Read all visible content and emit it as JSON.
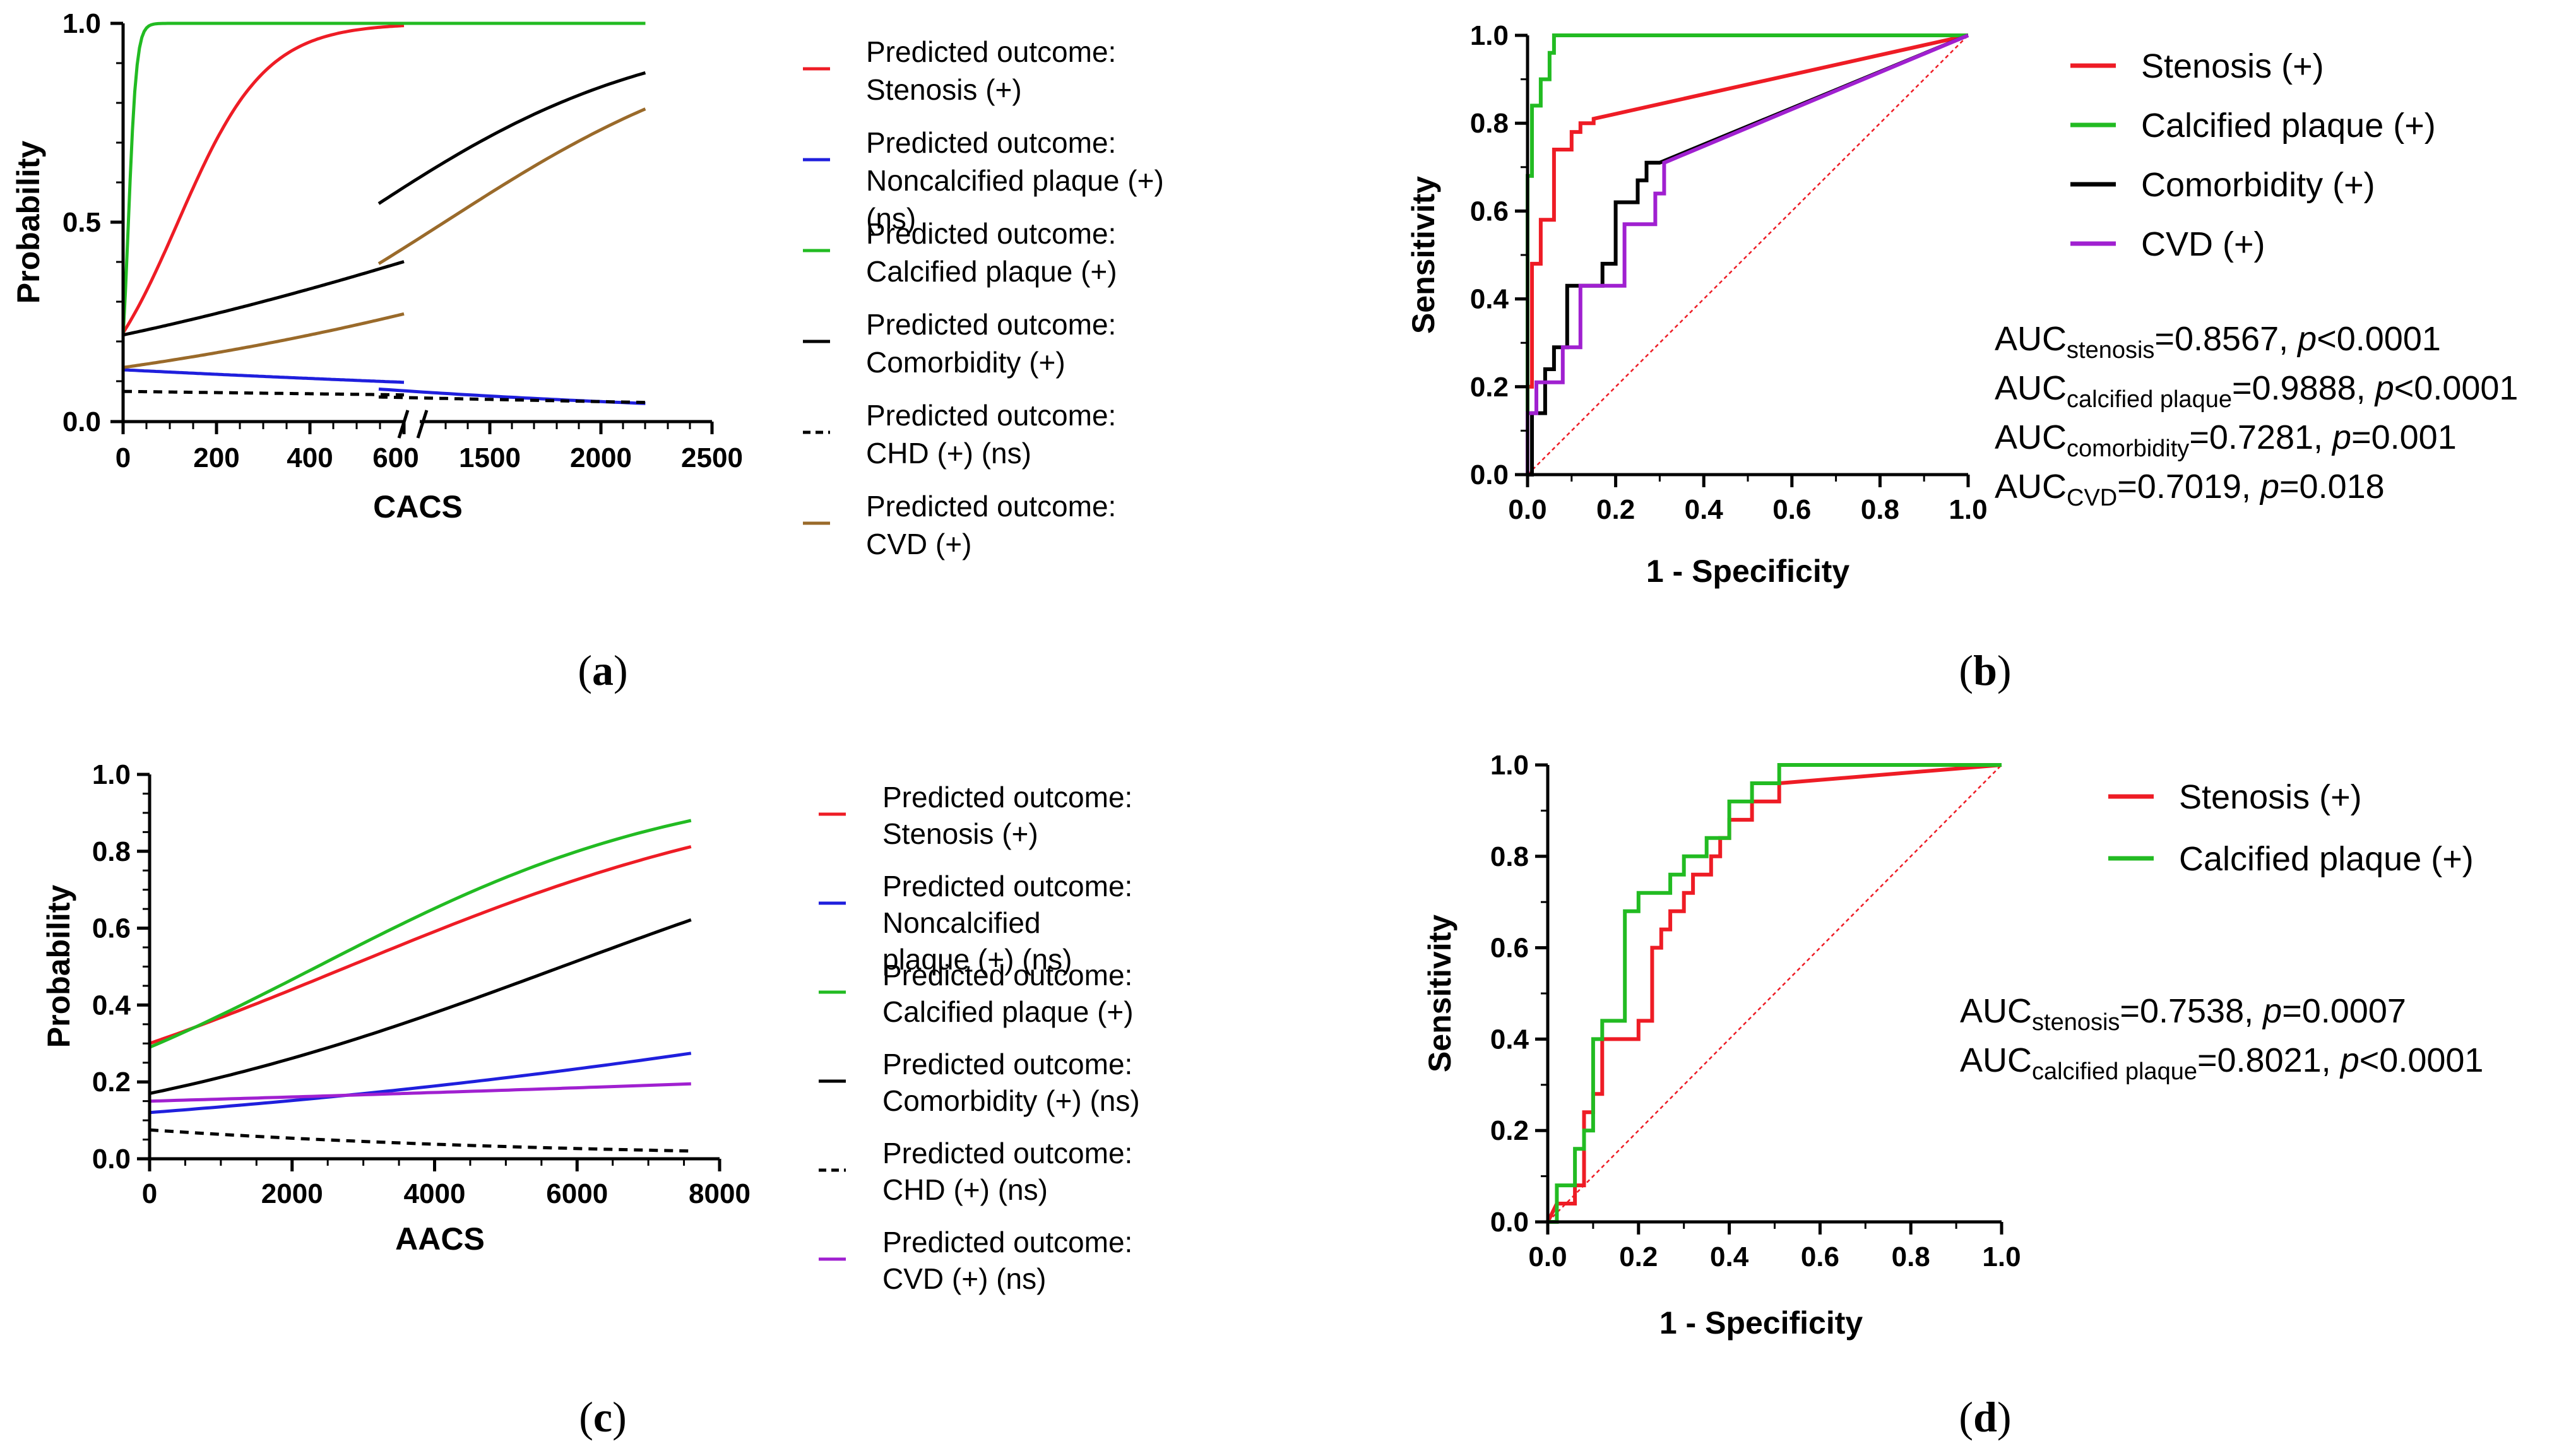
{
  "chart_data": [
    {
      "panel": "a",
      "panel_label": "a",
      "type": "line",
      "xlabel": "CACS",
      "ylabel": "Probability",
      "xlim": [
        0,
        2500
      ],
      "x_axis_break": [
        600,
        1000
      ],
      "ylim": [
        0,
        1.0
      ],
      "x_ticks_left": [
        "0",
        "200",
        "400",
        "600"
      ],
      "x_ticks_right": [
        "1500",
        "2000",
        "2500"
      ],
      "y_ticks": [
        "0.0",
        "0.5",
        "1.0"
      ],
      "legend_position": "right",
      "series": [
        {
          "name_line1": "Predicted outcome:",
          "name_line2": "Stenosis (+)",
          "name_line3": "",
          "color": "#ee1c25",
          "dash": false,
          "model": {
            "b0": -1.25,
            "b1": 0.0107
          }
        },
        {
          "name_line1": "Predicted outcome:",
          "name_line2": "Noncalcified plaque (+)",
          "name_line3": "(ns)",
          "color": "#1f1fdd",
          "dash": false,
          "model": {
            "b0": -1.9,
            "b1": -0.00052
          }
        },
        {
          "name_line1": "Predicted outcome:",
          "name_line2": "Calcified plaque (+)",
          "name_line3": "",
          "color": "#22bb22",
          "dash": false,
          "model": {
            "b0": -1.3,
            "b1": 0.115
          }
        },
        {
          "name_line1": "Predicted outcome:",
          "name_line2": "Comorbidity (+)",
          "name_line3": "",
          "color": "#000000",
          "dash": false,
          "model": {
            "b0": -1.28,
            "b1": 0.00147
          }
        },
        {
          "name_line1": "Predicted outcome:",
          "name_line2": "CHD (+) (ns)",
          "name_line3": "",
          "color": "#000000",
          "dash": true,
          "model": {
            "b0": -2.5,
            "b1": -0.00022
          }
        },
        {
          "name_line1": "Predicted outcome:",
          "name_line2": "CVD (+)",
          "name_line3": "",
          "color": "#9a6a2a",
          "dash": false,
          "model": {
            "b0": -1.85,
            "b1": 0.00143
          }
        }
      ]
    },
    {
      "panel": "b",
      "panel_label": "b",
      "type": "line",
      "xlabel": "1 - Specificity",
      "ylabel": "Sensitivity",
      "xlim": [
        0,
        1.0
      ],
      "ylim": [
        0,
        1.0
      ],
      "ticks": [
        "0.0",
        "0.2",
        "0.4",
        "0.6",
        "0.8",
        "1.0"
      ],
      "legend_position": "top-right",
      "series": [
        {
          "name": "Stenosis (+)",
          "color": "#ee1c25",
          "points": [
            [
              0,
              0
            ],
            [
              0,
              0.2
            ],
            [
              0.01,
              0.2
            ],
            [
              0.01,
              0.48
            ],
            [
              0.03,
              0.48
            ],
            [
              0.03,
              0.58
            ],
            [
              0.06,
              0.58
            ],
            [
              0.06,
              0.74
            ],
            [
              0.1,
              0.74
            ],
            [
              0.1,
              0.78
            ],
            [
              0.12,
              0.78
            ],
            [
              0.12,
              0.8
            ],
            [
              0.15,
              0.8
            ],
            [
              0.15,
              0.81
            ],
            [
              1,
              1
            ]
          ]
        },
        {
          "name": "Calcified plaque (+)",
          "color": "#22bb22",
          "points": [
            [
              0,
              0
            ],
            [
              0,
              0.68
            ],
            [
              0.01,
              0.68
            ],
            [
              0.01,
              0.84
            ],
            [
              0.03,
              0.84
            ],
            [
              0.03,
              0.9
            ],
            [
              0.05,
              0.9
            ],
            [
              0.05,
              0.96
            ],
            [
              0.06,
              0.96
            ],
            [
              0.06,
              1.0
            ],
            [
              1,
              1
            ]
          ]
        },
        {
          "name": "Comorbidity (+)",
          "color": "#000000",
          "points": [
            [
              0,
              0
            ],
            [
              0.01,
              0.0
            ],
            [
              0.01,
              0.14
            ],
            [
              0.04,
              0.14
            ],
            [
              0.04,
              0.24
            ],
            [
              0.06,
              0.24
            ],
            [
              0.06,
              0.29
            ],
            [
              0.09,
              0.29
            ],
            [
              0.09,
              0.43
            ],
            [
              0.17,
              0.43
            ],
            [
              0.17,
              0.48
            ],
            [
              0.2,
              0.48
            ],
            [
              0.2,
              0.62
            ],
            [
              0.25,
              0.62
            ],
            [
              0.25,
              0.67
            ],
            [
              0.27,
              0.67
            ],
            [
              0.27,
              0.71
            ],
            [
              0.3,
              0.71
            ],
            [
              1,
              1
            ]
          ]
        },
        {
          "name": "CVD (+)",
          "color": "#a020d0",
          "points": [
            [
              0,
              0
            ],
            [
              0,
              0.14
            ],
            [
              0.02,
              0.14
            ],
            [
              0.02,
              0.21
            ],
            [
              0.08,
              0.21
            ],
            [
              0.08,
              0.29
            ],
            [
              0.12,
              0.29
            ],
            [
              0.12,
              0.43
            ],
            [
              0.22,
              0.43
            ],
            [
              0.22,
              0.57
            ],
            [
              0.29,
              0.57
            ],
            [
              0.29,
              0.64
            ],
            [
              0.31,
              0.64
            ],
            [
              0.31,
              0.71
            ],
            [
              1,
              1
            ]
          ]
        }
      ],
      "auc": [
        {
          "pre": "AUC",
          "sub": "stenosis",
          "value": "=0.8567, ",
          "p": "p",
          "rest": "<0.0001"
        },
        {
          "pre": "AUC",
          "sub": "calcified plaque",
          "value": "=0.9888, ",
          "p": "p",
          "rest": "<0.0001"
        },
        {
          "pre": "AUC",
          "sub": "comorbidity",
          "value": "=0.7281, ",
          "p": "p",
          "rest": "=0.001"
        },
        {
          "pre": "AUC",
          "sub": "CVD",
          "value": "=0.7019, ",
          "p": "p",
          "rest": "=0.018"
        }
      ]
    },
    {
      "panel": "c",
      "panel_label": "c",
      "type": "line",
      "xlabel": "AACS",
      "ylabel": "Probability",
      "xlim": [
        0,
        8000
      ],
      "ylim": [
        0,
        1.0
      ],
      "x_ticks": [
        "0",
        "2000",
        "4000",
        "6000",
        "8000"
      ],
      "y_ticks": [
        "0.0",
        "0.2",
        "0.4",
        "0.6",
        "0.8",
        "1.0"
      ],
      "legend_position": "right",
      "series": [
        {
          "name_line1": "Predicted outcome:",
          "name_line2": "Stenosis (+)",
          "name_line3": "",
          "color": "#ee1c25",
          "dash": false,
          "model": {
            "b0": -0.847,
            "b1": 0.000304
          }
        },
        {
          "name_line1": "Predicted outcome:",
          "name_line2": "Noncalcified",
          "name_line3": "plaque (+) (ns)",
          "color": "#1f1fdd",
          "dash": false,
          "model": {
            "b0": -1.99,
            "b1": 0.000134
          }
        },
        {
          "name_line1": "Predicted outcome:",
          "name_line2": "Calcified plaque (+)",
          "name_line3": "",
          "color": "#22bb22",
          "dash": false,
          "model": {
            "b0": -0.895,
            "b1": 0.00038
          }
        },
        {
          "name_line1": "Predicted outcome:",
          "name_line2": "Comorbidity (+) (ns)",
          "name_line3": "",
          "color": "#000000",
          "dash": false,
          "model": {
            "b0": -1.586,
            "b1": 0.000274
          }
        },
        {
          "name_line1": "Predicted outcome:",
          "name_line2": "CHD (+) (ns)",
          "name_line3": "",
          "color": "#000000",
          "dash": true,
          "model": {
            "b0": -2.51,
            "b1": -0.000181
          }
        },
        {
          "name_line1": "Predicted outcome:",
          "name_line2": "CVD (+) (ns)",
          "name_line3": "",
          "color": "#a020d0",
          "dash": false,
          "model": {
            "b0": -1.735,
            "b1": 4.17e-05
          }
        }
      ]
    },
    {
      "panel": "d",
      "panel_label": "d",
      "type": "line",
      "xlabel": "1 - Specificity",
      "ylabel": "Sensitivity",
      "xlim": [
        0,
        1.0
      ],
      "ylim": [
        0,
        1.0
      ],
      "ticks": [
        "0.0",
        "0.2",
        "0.4",
        "0.6",
        "0.8",
        "1.0"
      ],
      "legend_position": "top-right",
      "series": [
        {
          "name": "Stenosis (+)",
          "color": "#ee1c25",
          "points": [
            [
              0,
              0
            ],
            [
              0.02,
              0.04
            ],
            [
              0.06,
              0.04
            ],
            [
              0.06,
              0.08
            ],
            [
              0.08,
              0.08
            ],
            [
              0.08,
              0.24
            ],
            [
              0.1,
              0.24
            ],
            [
              0.1,
              0.28
            ],
            [
              0.12,
              0.28
            ],
            [
              0.12,
              0.4
            ],
            [
              0.2,
              0.4
            ],
            [
              0.2,
              0.44
            ],
            [
              0.23,
              0.44
            ],
            [
              0.23,
              0.6
            ],
            [
              0.25,
              0.6
            ],
            [
              0.25,
              0.64
            ],
            [
              0.27,
              0.64
            ],
            [
              0.27,
              0.68
            ],
            [
              0.3,
              0.68
            ],
            [
              0.3,
              0.72
            ],
            [
              0.32,
              0.72
            ],
            [
              0.32,
              0.76
            ],
            [
              0.36,
              0.76
            ],
            [
              0.36,
              0.8
            ],
            [
              0.38,
              0.8
            ],
            [
              0.38,
              0.84
            ],
            [
              0.4,
              0.84
            ],
            [
              0.4,
              0.88
            ],
            [
              0.45,
              0.88
            ],
            [
              0.45,
              0.92
            ],
            [
              0.51,
              0.92
            ],
            [
              0.51,
              0.96
            ],
            [
              1,
              1
            ]
          ]
        },
        {
          "name": "Calcified plaque (+)",
          "color": "#22bb22",
          "points": [
            [
              0,
              0
            ],
            [
              0.02,
              0.0
            ],
            [
              0.02,
              0.08
            ],
            [
              0.06,
              0.08
            ],
            [
              0.06,
              0.16
            ],
            [
              0.08,
              0.16
            ],
            [
              0.08,
              0.2
            ],
            [
              0.1,
              0.2
            ],
            [
              0.1,
              0.4
            ],
            [
              0.12,
              0.4
            ],
            [
              0.12,
              0.44
            ],
            [
              0.17,
              0.44
            ],
            [
              0.17,
              0.68
            ],
            [
              0.2,
              0.68
            ],
            [
              0.2,
              0.72
            ],
            [
              0.27,
              0.72
            ],
            [
              0.27,
              0.76
            ],
            [
              0.3,
              0.76
            ],
            [
              0.3,
              0.8
            ],
            [
              0.35,
              0.8
            ],
            [
              0.35,
              0.84
            ],
            [
              0.4,
              0.84
            ],
            [
              0.4,
              0.92
            ],
            [
              0.45,
              0.92
            ],
            [
              0.45,
              0.96
            ],
            [
              0.51,
              0.96
            ],
            [
              0.51,
              1.0
            ],
            [
              1,
              1
            ]
          ]
        }
      ],
      "auc": [
        {
          "pre": "AUC",
          "sub": "stenosis",
          "value": "=0.7538, ",
          "p": "p",
          "rest": "=0.0007"
        },
        {
          "pre": "AUC",
          "sub": "calcified plaque",
          "value": "=0.8021, ",
          "p": "p",
          "rest": "<0.0001"
        }
      ]
    }
  ]
}
